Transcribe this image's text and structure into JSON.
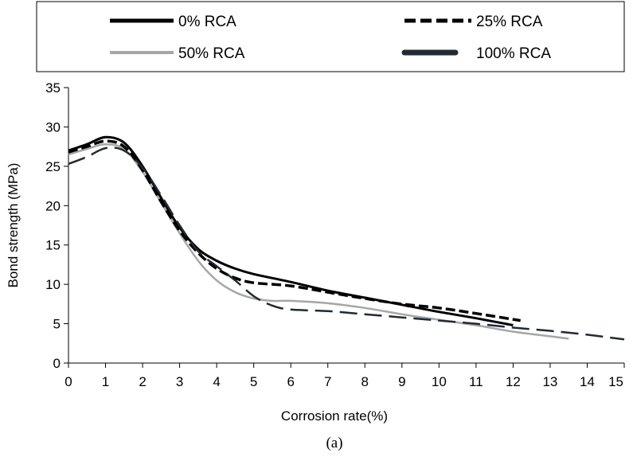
{
  "chart_data": {
    "type": "line",
    "title": "",
    "xlabel": "Corrosion rate(%)",
    "ylabel": "Bond strength (MPa)",
    "caption": "(a)",
    "xlim": [
      0,
      15
    ],
    "ylim": [
      0,
      35
    ],
    "xticks": [
      0,
      1,
      2,
      3,
      4,
      5,
      6,
      7,
      8,
      9,
      10,
      11,
      12,
      13,
      14,
      15
    ],
    "yticks": [
      0,
      5,
      10,
      15,
      20,
      25,
      30,
      35
    ],
    "grid": false,
    "legend_position": "top",
    "series": [
      {
        "name": "0% RCA",
        "color": "#000000",
        "style": "solid",
        "x": [
          0,
          0.5,
          1,
          1.5,
          2,
          2.5,
          3,
          3.5,
          4,
          4.5,
          5,
          6,
          7,
          8,
          9,
          10,
          11,
          12
        ],
        "y": [
          27,
          27.8,
          28.7,
          28,
          25,
          21,
          17.2,
          14.5,
          13,
          12,
          11.3,
          10.3,
          9.2,
          8.3,
          7.4,
          6.5,
          5.7,
          4.8
        ]
      },
      {
        "name": "25% RCA",
        "color": "#000000",
        "style": "dashed",
        "x": [
          0,
          0.5,
          1,
          1.5,
          2,
          2.5,
          3,
          3.5,
          4,
          4.5,
          5,
          6,
          7,
          8,
          9,
          10,
          11,
          12.2
        ],
        "y": [
          26.8,
          27.5,
          28.2,
          27.5,
          24.5,
          20.5,
          16.8,
          14,
          12,
          10.8,
          10.2,
          9.8,
          9,
          8.2,
          7.5,
          7,
          6.3,
          5.4
        ]
      },
      {
        "name": "50% RCA",
        "color": "#a6a6a6",
        "style": "solid",
        "x": [
          0,
          0.5,
          1,
          1.5,
          2,
          2.5,
          3,
          3.5,
          4,
          4.5,
          5,
          5.5,
          6,
          7,
          8,
          9,
          10,
          11,
          12,
          13,
          13.5
        ],
        "y": [
          26.5,
          27.2,
          27.8,
          27.2,
          24.3,
          20.4,
          16.5,
          13,
          10.5,
          9,
          8.2,
          7.9,
          7.9,
          7.6,
          7,
          6.2,
          5.5,
          4.8,
          4,
          3.4,
          3.1
        ]
      },
      {
        "name": "100% RCA",
        "color": "#222a35",
        "style": "dashed",
        "x": [
          0,
          0.5,
          1,
          1.5,
          2,
          2.5,
          3,
          3.5,
          4,
          4.5,
          5,
          5.5,
          6,
          7,
          8,
          9,
          10,
          11,
          12,
          13,
          14,
          15
        ],
        "y": [
          25.3,
          26.2,
          27.3,
          27,
          24.8,
          21.3,
          17.5,
          14.2,
          12.3,
          10.5,
          8.5,
          7.3,
          6.8,
          6.6,
          6.2,
          5.8,
          5.4,
          5,
          4.5,
          4.1,
          3.6,
          3
        ]
      }
    ]
  }
}
